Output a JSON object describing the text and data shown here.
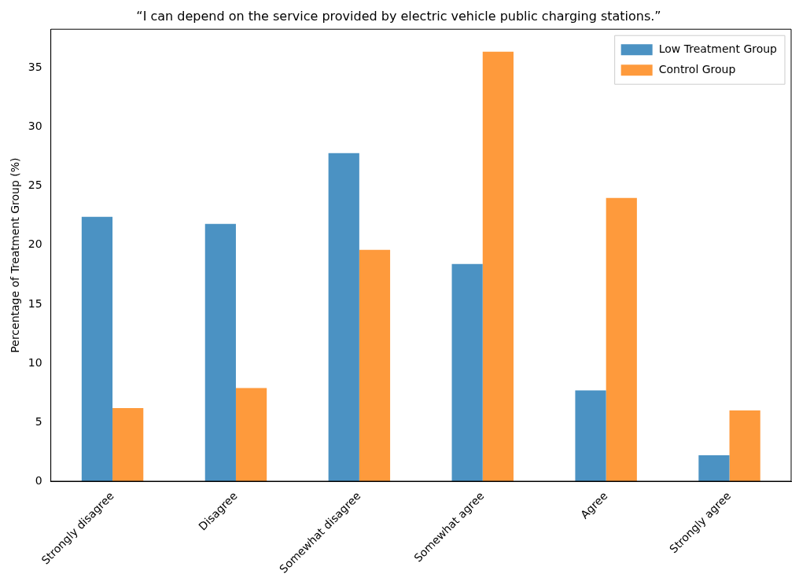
{
  "chart_data": {
    "type": "bar",
    "title": "“I can depend on the service provided by electric vehicle public charging stations.”",
    "ylabel": "Percentage of Treatment Group (%)",
    "categories": [
      "Strongly disagree",
      "Disagree",
      "Somewhat disagree",
      "Somewhat agree",
      "Agree",
      "Strongly agree"
    ],
    "series": [
      {
        "name": "Low Treatment Group",
        "color": "#4b92c3",
        "values": [
          22.4,
          21.8,
          27.8,
          18.4,
          7.7,
          2.2
        ]
      },
      {
        "name": "Control Group",
        "color": "#fe9a3c",
        "values": [
          6.2,
          7.9,
          19.6,
          36.4,
          24.0,
          6.0
        ]
      }
    ],
    "ylim": [
      0,
      38.3
    ],
    "yticks": [
      0,
      5,
      10,
      15,
      20,
      25,
      30,
      35
    ],
    "grid": false,
    "legend": "top right"
  }
}
